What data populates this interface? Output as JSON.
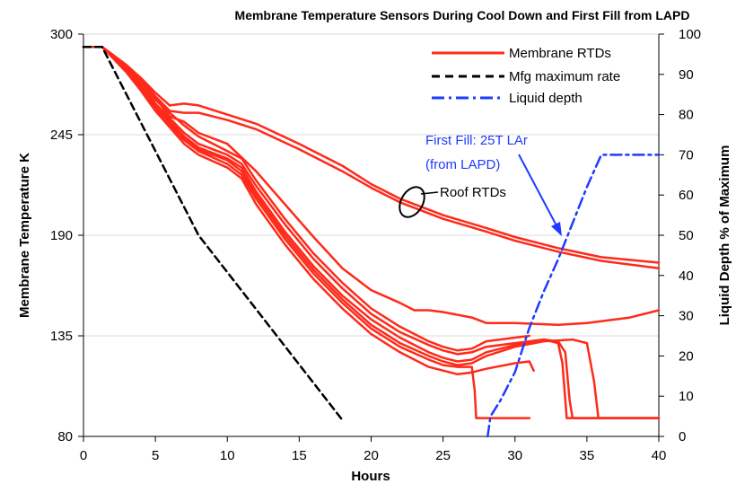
{
  "chart_data": {
    "type": "line",
    "title": "Membrane Temperature Sensors During Cool Down and First Fill from LAPD",
    "xlabel": "Hours",
    "ylabel_left": "Membrane Temperature K",
    "ylabel_right": "Liquid Depth % of Maximum",
    "xlim": [
      0,
      40
    ],
    "ylim_left": [
      80,
      300
    ],
    "ylim_right": [
      0,
      100
    ],
    "x_ticks": [
      "0",
      "5",
      "10",
      "15",
      "20",
      "25",
      "30",
      "35",
      "40"
    ],
    "y_left_ticks": [
      "80",
      "135",
      "190",
      "245",
      "300"
    ],
    "y_right_ticks": [
      "0",
      "10",
      "20",
      "30",
      "40",
      "50",
      "60",
      "70",
      "80",
      "90",
      "100"
    ],
    "grid": "horizontal",
    "legend": {
      "position": "top-right",
      "entries": [
        {
          "label": "Membrane RTDs",
          "color": "#ff2a1a",
          "style": "solid"
        },
        {
          "label": "Mfg maximum rate",
          "color": "#000000",
          "style": "dashed"
        },
        {
          "label": "Liquid depth",
          "color": "#1f3bff",
          "style": "dash-dot"
        }
      ]
    },
    "annotations": {
      "first_fill_line1": "First Fill: 25T LAr",
      "first_fill_line2": "(from LAPD)",
      "roof": "Roof RTDs"
    },
    "colors": {
      "rtd": "#ff2a1a",
      "mfg": "#000000",
      "liquid": "#1f3bff"
    },
    "series": [
      {
        "axis": "left",
        "style": "rtd",
        "points": [
          [
            0,
            293
          ],
          [
            1.3,
            293
          ],
          [
            3,
            283
          ],
          [
            4,
            276
          ],
          [
            5,
            268
          ],
          [
            6,
            261
          ],
          [
            7,
            262
          ],
          [
            8,
            261
          ],
          [
            10,
            256
          ],
          [
            12,
            251
          ],
          [
            15,
            240
          ],
          [
            18,
            228
          ],
          [
            20,
            218
          ],
          [
            22,
            210
          ],
          [
            25,
            201
          ],
          [
            28,
            194
          ],
          [
            30,
            189
          ],
          [
            33,
            183
          ],
          [
            36,
            178
          ],
          [
            40,
            175
          ]
        ]
      },
      {
        "axis": "left",
        "style": "rtd",
        "points": [
          [
            0,
            293
          ],
          [
            1.3,
            293
          ],
          [
            3,
            283
          ],
          [
            4,
            275
          ],
          [
            5,
            266
          ],
          [
            6,
            258
          ],
          [
            7,
            257
          ],
          [
            8,
            257
          ],
          [
            10,
            253
          ],
          [
            12,
            248
          ],
          [
            15,
            237
          ],
          [
            18,
            225
          ],
          [
            20,
            216
          ],
          [
            22,
            208
          ],
          [
            25,
            199
          ],
          [
            28,
            192
          ],
          [
            30,
            187
          ],
          [
            33,
            181
          ],
          [
            36,
            176
          ],
          [
            40,
            172
          ]
        ]
      },
      {
        "axis": "left",
        "style": "rtd",
        "points": [
          [
            0,
            293
          ],
          [
            1.3,
            293
          ],
          [
            3,
            282
          ],
          [
            4,
            274
          ],
          [
            5,
            265
          ],
          [
            6,
            255
          ],
          [
            7,
            252
          ],
          [
            8,
            246
          ],
          [
            10,
            240
          ],
          [
            12,
            225
          ],
          [
            14,
            207
          ],
          [
            16,
            189
          ],
          [
            18,
            172
          ],
          [
            20,
            160
          ],
          [
            22,
            153
          ],
          [
            23,
            149
          ],
          [
            24,
            149
          ],
          [
            25,
            148
          ],
          [
            27,
            145
          ],
          [
            28,
            142
          ],
          [
            30,
            142
          ],
          [
            33,
            141
          ],
          [
            35,
            142
          ],
          [
            38,
            145
          ],
          [
            40,
            149
          ]
        ]
      },
      {
        "axis": "left",
        "style": "rtd",
        "points": [
          [
            0,
            293
          ],
          [
            1.3,
            293
          ],
          [
            3,
            282
          ],
          [
            4,
            273
          ],
          [
            5,
            264
          ],
          [
            7,
            250
          ],
          [
            8,
            244
          ],
          [
            10,
            236
          ],
          [
            11,
            232
          ],
          [
            12,
            220
          ],
          [
            14,
            199
          ],
          [
            16,
            180
          ],
          [
            18,
            164
          ],
          [
            20,
            150
          ],
          [
            22,
            140
          ],
          [
            24,
            132
          ],
          [
            25,
            129
          ],
          [
            26,
            127
          ],
          [
            27,
            128
          ],
          [
            28,
            132
          ],
          [
            30,
            134
          ],
          [
            31,
            135
          ]
        ]
      },
      {
        "axis": "left",
        "style": "rtd",
        "points": [
          [
            0,
            293
          ],
          [
            1.3,
            293
          ],
          [
            3,
            281
          ],
          [
            4,
            272
          ],
          [
            5,
            262
          ],
          [
            7,
            246
          ],
          [
            8,
            240
          ],
          [
            10,
            234
          ],
          [
            11,
            229
          ],
          [
            12,
            217
          ],
          [
            14,
            196
          ],
          [
            16,
            177
          ],
          [
            18,
            161
          ],
          [
            20,
            147
          ],
          [
            22,
            137
          ],
          [
            24,
            130
          ],
          [
            25,
            127
          ],
          [
            26,
            125
          ],
          [
            27,
            126
          ],
          [
            28,
            129
          ],
          [
            30,
            131
          ],
          [
            32,
            133
          ],
          [
            33,
            132
          ],
          [
            33.5,
            126
          ],
          [
            33.8,
            100
          ],
          [
            34,
            90
          ],
          [
            40,
            90
          ]
        ]
      },
      {
        "axis": "left",
        "style": "rtd",
        "points": [
          [
            0,
            293
          ],
          [
            1.3,
            293
          ],
          [
            3,
            281
          ],
          [
            4,
            271
          ],
          [
            5,
            261
          ],
          [
            7,
            244
          ],
          [
            8,
            238
          ],
          [
            10,
            232
          ],
          [
            11,
            227
          ],
          [
            12,
            214
          ],
          [
            14,
            192
          ],
          [
            16,
            173
          ],
          [
            18,
            157
          ],
          [
            20,
            144
          ],
          [
            22,
            134
          ],
          [
            24,
            126
          ],
          [
            25,
            123
          ],
          [
            26,
            121
          ],
          [
            27,
            122
          ],
          [
            28,
            126
          ],
          [
            30,
            130
          ],
          [
            32,
            133
          ],
          [
            33,
            131
          ],
          [
            33.3,
            120
          ],
          [
            33.6,
            90
          ],
          [
            40,
            90
          ]
        ]
      },
      {
        "axis": "left",
        "style": "rtd",
        "points": [
          [
            0,
            293
          ],
          [
            1.3,
            293
          ],
          [
            3,
            280
          ],
          [
            4,
            270
          ],
          [
            5,
            260
          ],
          [
            7,
            243
          ],
          [
            8,
            237
          ],
          [
            10,
            231
          ],
          [
            11,
            225
          ],
          [
            12,
            212
          ],
          [
            14,
            190
          ],
          [
            16,
            171
          ],
          [
            18,
            155
          ],
          [
            20,
            141
          ],
          [
            22,
            131
          ],
          [
            24,
            124
          ],
          [
            25,
            121
          ],
          [
            26,
            119
          ],
          [
            27,
            120
          ],
          [
            28,
            124
          ],
          [
            30,
            129
          ],
          [
            32,
            132
          ],
          [
            34,
            133
          ],
          [
            35,
            131
          ],
          [
            35.5,
            110
          ],
          [
            35.8,
            90
          ],
          [
            40,
            90
          ]
        ]
      },
      {
        "axis": "left",
        "style": "rtd",
        "points": [
          [
            0,
            293
          ],
          [
            1.3,
            293
          ],
          [
            3,
            280
          ],
          [
            4,
            270
          ],
          [
            5,
            259
          ],
          [
            7,
            242
          ],
          [
            8,
            236
          ],
          [
            10,
            229
          ],
          [
            11,
            223
          ],
          [
            12,
            210
          ],
          [
            14,
            188
          ],
          [
            16,
            169
          ],
          [
            18,
            153
          ],
          [
            20,
            139
          ],
          [
            22,
            129
          ],
          [
            24,
            122
          ],
          [
            25,
            119
          ],
          [
            26,
            118
          ],
          [
            27,
            118
          ],
          [
            27.2,
            105
          ],
          [
            27.3,
            90
          ],
          [
            31,
            90
          ]
        ]
      },
      {
        "axis": "left",
        "style": "rtd",
        "points": [
          [
            0,
            293
          ],
          [
            1.3,
            293
          ],
          [
            3,
            279
          ],
          [
            4,
            269
          ],
          [
            5,
            258
          ],
          [
            7,
            240
          ],
          [
            8,
            234
          ],
          [
            10,
            227
          ],
          [
            11,
            221
          ],
          [
            12,
            207
          ],
          [
            14,
            185
          ],
          [
            16,
            166
          ],
          [
            18,
            150
          ],
          [
            20,
            136
          ],
          [
            22,
            126
          ],
          [
            24,
            118
          ],
          [
            25,
            116
          ],
          [
            26,
            114
          ],
          [
            27,
            115
          ],
          [
            28,
            117
          ],
          [
            30,
            120
          ],
          [
            31,
            121
          ],
          [
            31.3,
            116
          ]
        ]
      },
      {
        "axis": "left",
        "style": "mfg",
        "points": [
          [
            0,
            293
          ],
          [
            1.3,
            293
          ],
          [
            8,
            190
          ],
          [
            18,
            89
          ]
        ]
      },
      {
        "axis": "right",
        "style": "liquid",
        "points": [
          [
            28.1,
            0
          ],
          [
            28.3,
            5
          ],
          [
            29,
            9
          ],
          [
            30,
            16
          ],
          [
            31,
            27
          ],
          [
            32,
            36
          ],
          [
            33,
            44
          ],
          [
            34,
            53
          ],
          [
            35,
            62
          ],
          [
            36,
            70
          ],
          [
            40,
            70
          ]
        ]
      }
    ]
  }
}
